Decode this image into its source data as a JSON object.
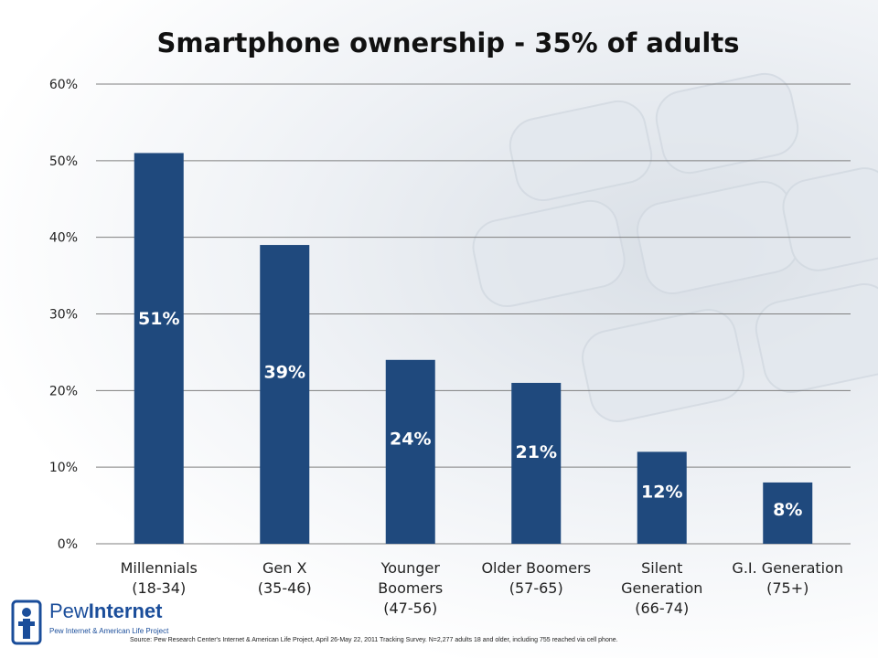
{
  "chart_data": {
    "type": "bar",
    "title": "Smartphone ownership - 35% of adults",
    "xlabel": "",
    "ylabel": "",
    "ylim": [
      0,
      60
    ],
    "y_ticks": [
      "0%",
      "10%",
      "20%",
      "30%",
      "40%",
      "50%",
      "60%"
    ],
    "grid": true,
    "categories": [
      [
        "Millennials",
        "(18-34)"
      ],
      [
        "Gen X",
        "(35-46)"
      ],
      [
        "Younger",
        "Boomers",
        "(47-56)"
      ],
      [
        "Older Boomers",
        "(57-65)"
      ],
      [
        "Silent",
        "Generation",
        "(66-74)"
      ],
      [
        "G.I. Generation",
        "(75+)"
      ]
    ],
    "values": [
      51,
      39,
      24,
      21,
      12,
      8
    ],
    "data_labels": [
      "51%",
      "39%",
      "24%",
      "21%",
      "12%",
      "8%"
    ],
    "bar_color": "#1f497d"
  },
  "logo": {
    "name_part1": "Pew",
    "name_part2": "Internet",
    "subtitle": "Pew Internet & American Life Project"
  },
  "source": "Source: Pew Research Center's Internet & American Life Project, April 26-May 22, 2011 Tracking Survey. N=2,277 adults 18 and older, including 755 reached via cell phone."
}
